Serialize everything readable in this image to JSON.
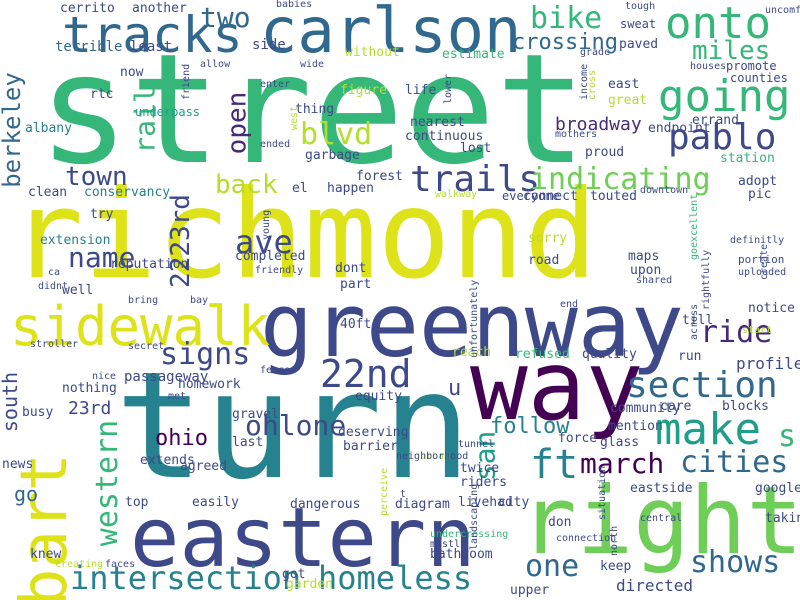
{
  "palette": [
    "#440154",
    "#482878",
    "#3e4989",
    "#31688e",
    "#26828e",
    "#1f9e89",
    "#35b779",
    "#6ece58",
    "#b5de2b",
    "#fde725"
  ],
  "words": [
    {
      "text": "street",
      "color": "#35b779"
    },
    {
      "text": "richmond",
      "color": "#dde318"
    },
    {
      "text": "turn",
      "color": "#26828e"
    },
    {
      "text": "greenway",
      "color": "#3e4989"
    },
    {
      "text": "carlson",
      "color": "#31688e"
    },
    {
      "text": "eastern",
      "color": "#3e4989"
    },
    {
      "text": "right",
      "color": "#6ece58"
    },
    {
      "text": "way",
      "color": "#440154"
    },
    {
      "text": "bart",
      "color": "#dde318"
    },
    {
      "text": "tracks",
      "color": "#31688e"
    },
    {
      "text": "sidewalk",
      "color": "#dde318"
    },
    {
      "text": "onto",
      "color": "#35b779"
    },
    {
      "text": "going",
      "color": "#35b779"
    },
    {
      "text": "make",
      "color": "#1f9e89"
    },
    {
      "text": "22nd",
      "color": "#3e4989"
    },
    {
      "text": "section",
      "color": "#31688e"
    },
    {
      "text": "trails",
      "color": "#3e4989"
    },
    {
      "text": "ft",
      "color": "#26828e"
    },
    {
      "text": "homeless",
      "color": "#26828e"
    },
    {
      "text": "intersection",
      "color": "#26828e"
    },
    {
      "text": "shows",
      "color": "#31688e"
    },
    {
      "text": "pablo",
      "color": "#3e4989"
    },
    {
      "text": "march",
      "color": "#440154"
    },
    {
      "text": "cities",
      "color": "#31688e"
    },
    {
      "text": "indicating",
      "color": "#6ece58"
    },
    {
      "text": "ride",
      "color": "#482878"
    },
    {
      "text": "signs",
      "color": "#3e4989"
    },
    {
      "text": "miles",
      "color": "#35b779"
    },
    {
      "text": "bike",
      "color": "#35b779"
    },
    {
      "text": "two",
      "color": "#31688e"
    },
    {
      "text": "town",
      "color": "#3e4989"
    },
    {
      "text": "name",
      "color": "#3e4989"
    },
    {
      "text": "back",
      "color": "#b5de2b"
    },
    {
      "text": "ave",
      "color": "#3e4989"
    },
    {
      "text": "ohlone",
      "color": "#3e4989"
    },
    {
      "text": "western",
      "color": "#35b779"
    },
    {
      "text": "one",
      "color": "#31688e"
    },
    {
      "text": "blvd",
      "color": "#b5de2b"
    },
    {
      "text": "open",
      "color": "#482878"
    },
    {
      "text": "rail",
      "color": "#35b779"
    },
    {
      "text": "2223rd",
      "color": "#3e4989"
    },
    {
      "text": "berkeley",
      "color": "#31688e"
    },
    {
      "text": "san",
      "color": "#1f9e89"
    },
    {
      "text": "crossing",
      "color": "#31688e"
    },
    {
      "text": "broadway",
      "color": "#482878"
    },
    {
      "text": "south",
      "color": "#3e4989"
    },
    {
      "text": "ohio",
      "color": "#440154"
    },
    {
      "text": "s",
      "color": "#35b779"
    },
    {
      "text": "follow",
      "color": "#26828e"
    },
    {
      "text": "go",
      "color": "#31688e"
    },
    {
      "text": "23rd",
      "color": "#3e4989"
    },
    {
      "text": "u",
      "color": "#3e4989"
    },
    {
      "text": "cerrito",
      "color": "#3e4989"
    },
    {
      "text": "another",
      "color": "#3e4989"
    },
    {
      "text": "terrible",
      "color": "#31688e"
    },
    {
      "text": "least",
      "color": "#3e4989"
    },
    {
      "text": "side",
      "color": "#3e4989"
    },
    {
      "text": "without",
      "color": "#b5de2b"
    },
    {
      "text": "estimate",
      "color": "#35b779"
    },
    {
      "text": "paved",
      "color": "#3e4989"
    },
    {
      "text": "sweat",
      "color": "#3e4989"
    },
    {
      "text": "promote",
      "color": "#3e4989"
    },
    {
      "text": "counties",
      "color": "#3e4989"
    },
    {
      "text": "now",
      "color": "#3e4989"
    },
    {
      "text": "rtc",
      "color": "#3e4989"
    },
    {
      "text": "underpass",
      "color": "#1f9e89"
    },
    {
      "text": "albany",
      "color": "#26828e"
    },
    {
      "text": "figure",
      "color": "#b5de2b"
    },
    {
      "text": "life",
      "color": "#3e4989"
    },
    {
      "text": "thing",
      "color": "#3e4989"
    },
    {
      "text": "nearest",
      "color": "#3e4989"
    },
    {
      "text": "continuous",
      "color": "#3e4989"
    },
    {
      "text": "east",
      "color": "#3e4989"
    },
    {
      "text": "great",
      "color": "#b5de2b"
    },
    {
      "text": "errand",
      "color": "#3e4989"
    },
    {
      "text": "endpoint",
      "color": "#3e4989"
    },
    {
      "text": "cross",
      "color": "#b5de2b"
    },
    {
      "text": "proud",
      "color": "#3e4989"
    },
    {
      "text": "station",
      "color": "#35b779"
    },
    {
      "text": "garbage",
      "color": "#3e4989"
    },
    {
      "text": "lost",
      "color": "#3e4989"
    },
    {
      "text": "clean",
      "color": "#3e4989"
    },
    {
      "text": "conservancy",
      "color": "#26828e"
    },
    {
      "text": "forest",
      "color": "#3e4989"
    },
    {
      "text": "happen",
      "color": "#3e4989"
    },
    {
      "text": "el",
      "color": "#3e4989"
    },
    {
      "text": "connect",
      "color": "#3e4989"
    },
    {
      "text": "touted",
      "color": "#3e4989"
    },
    {
      "text": "adopt",
      "color": "#3e4989"
    },
    {
      "text": "pic",
      "color": "#3e4989"
    },
    {
      "text": "try",
      "color": "#3e4989"
    },
    {
      "text": "extension",
      "color": "#26828e"
    },
    {
      "text": "dont",
      "color": "#3e4989"
    },
    {
      "text": "sorry",
      "color": "#b5de2b"
    },
    {
      "text": "maps",
      "color": "#3e4989"
    },
    {
      "text": "upon",
      "color": "#3e4989"
    },
    {
      "text": "road",
      "color": "#3e4989"
    },
    {
      "text": "completed",
      "color": "#3e4989"
    },
    {
      "text": "part",
      "color": "#3e4989"
    },
    {
      "text": "well",
      "color": "#3e4989"
    },
    {
      "text": "goexcellent",
      "color": "#35b779"
    },
    {
      "text": "uploaded",
      "color": "#3e4989"
    },
    {
      "text": "unfortunately",
      "color": "#3e4989"
    },
    {
      "text": "portion",
      "color": "#3e4989"
    },
    {
      "text": "40ft",
      "color": "#3e4989"
    },
    {
      "text": "end",
      "color": "#3e4989"
    },
    {
      "text": "till",
      "color": "#3e4989"
    },
    {
      "text": "notice",
      "color": "#3e4989"
    },
    {
      "text": "run",
      "color": "#3e4989"
    },
    {
      "text": "profile",
      "color": "#3e4989"
    },
    {
      "text": "reach",
      "color": "#b5de2b"
    },
    {
      "text": "refused",
      "color": "#35b779"
    },
    {
      "text": "quality",
      "color": "#3e4989"
    },
    {
      "text": "nothing",
      "color": "#3e4989"
    },
    {
      "text": "homework",
      "color": "#3e4989"
    },
    {
      "text": "equity",
      "color": "#3e4989"
    },
    {
      "text": "rightfully",
      "color": "#3e4989"
    },
    {
      "text": "gravel",
      "color": "#3e4989"
    },
    {
      "text": "last",
      "color": "#3e4989"
    },
    {
      "text": "busy",
      "color": "#3e4989"
    },
    {
      "text": "community",
      "color": "#3e4989"
    },
    {
      "text": "care",
      "color": "#3e4989"
    },
    {
      "text": "blocks",
      "color": "#3e4989"
    },
    {
      "text": "deserving",
      "color": "#3e4989"
    },
    {
      "text": "barrier",
      "color": "#3e4989"
    },
    {
      "text": "force",
      "color": "#3e4989"
    },
    {
      "text": "glass",
      "color": "#3e4989"
    },
    {
      "text": "mention",
      "color": "#3e4989"
    },
    {
      "text": "twice",
      "color": "#3e4989"
    },
    {
      "text": "riders",
      "color": "#3e4989"
    },
    {
      "text": "extends",
      "color": "#3e4989"
    },
    {
      "text": "agreed",
      "color": "#3e4989"
    },
    {
      "text": "news",
      "color": "#3e4989"
    },
    {
      "text": "start",
      "color": "#b5de2b"
    },
    {
      "text": "across",
      "color": "#3e4989"
    },
    {
      "text": "eastside",
      "color": "#3e4989"
    },
    {
      "text": "google",
      "color": "#3e4989"
    },
    {
      "text": "top",
      "color": "#3e4989"
    },
    {
      "text": "easily",
      "color": "#3e4989"
    },
    {
      "text": "dangerous",
      "color": "#3e4989"
    },
    {
      "text": "create",
      "color": "#3e4989"
    },
    {
      "text": "diagram",
      "color": "#3e4989"
    },
    {
      "text": "livehad",
      "color": "#3e4989"
    },
    {
      "text": "city",
      "color": "#3e4989"
    },
    {
      "text": "don",
      "color": "#3e4989"
    },
    {
      "text": "ended",
      "color": "#3e4989"
    },
    {
      "text": "taking",
      "color": "#3e4989"
    },
    {
      "text": "knew",
      "color": "#3e4989"
    },
    {
      "text": "bathroom",
      "color": "#3e4989"
    },
    {
      "text": "keep",
      "color": "#3e4989"
    },
    {
      "text": "got",
      "color": "#3e4989"
    },
    {
      "text": "garden",
      "color": "#b5de2b"
    },
    {
      "text": "upper",
      "color": "#3e4989"
    },
    {
      "text": "directed",
      "color": "#3e4989"
    },
    {
      "text": "undercrossing",
      "color": "#35b779"
    },
    {
      "text": "mostly",
      "color": "#3e4989"
    },
    {
      "text": "young",
      "color": "#3e4989"
    },
    {
      "text": "creating",
      "color": "#b5de2b"
    },
    {
      "text": "faces",
      "color": "#3e4989"
    },
    {
      "text": "babies",
      "color": "#3e4989"
    },
    {
      "text": "uncomfortable",
      "color": "#3e4989"
    },
    {
      "text": "tough",
      "color": "#3e4989"
    },
    {
      "text": "grade",
      "color": "#3e4989"
    },
    {
      "text": "houses",
      "color": "#3e4989"
    },
    {
      "text": "income",
      "color": "#3e4989"
    },
    {
      "text": "mothers",
      "color": "#3e4989"
    },
    {
      "text": "situation",
      "color": "#3e4989"
    },
    {
      "text": "tunnel",
      "color": "#3e4989"
    },
    {
      "text": "downtown",
      "color": "#3e4989"
    },
    {
      "text": "walkway",
      "color": "#b5de2b"
    },
    {
      "text": "everyone",
      "color": "#3e4989"
    },
    {
      "text": "reputation",
      "color": "#3e4989"
    },
    {
      "text": "ca",
      "color": "#3e4989"
    },
    {
      "text": "urban",
      "color": "#b5de2b"
    },
    {
      "text": "friendly",
      "color": "#3e4989"
    },
    {
      "text": "neighborhood",
      "color": "#3e4989"
    },
    {
      "text": "definitly",
      "color": "#3e4989"
    },
    {
      "text": "shared",
      "color": "#3e4989"
    },
    {
      "text": "didnt",
      "color": "#3e4989"
    },
    {
      "text": "bring",
      "color": "#3e4989"
    },
    {
      "text": "bay",
      "color": "#3e4989"
    },
    {
      "text": "stroller",
      "color": "#3e4989"
    },
    {
      "text": "secret",
      "color": "#3e4989"
    },
    {
      "text": "fences",
      "color": "#3e4989"
    },
    {
      "text": "nice",
      "color": "#3e4989"
    },
    {
      "text": "passageway",
      "color": "#3e4989"
    },
    {
      "text": "met",
      "color": "#3e4989"
    },
    {
      "text": "t",
      "color": "#3e4989"
    },
    {
      "text": "perceive",
      "color": "#b5de2b"
    },
    {
      "text": "central",
      "color": "#3e4989"
    },
    {
      "text": "north",
      "color": "#3e4989"
    },
    {
      "text": "connection",
      "color": "#3e4989"
    },
    {
      "text": "landscaping",
      "color": "#3e4989"
    },
    {
      "text": "enter",
      "color": "#3e4989"
    },
    {
      "text": "west",
      "color": "#b5de2b"
    },
    {
      "text": "allow",
      "color": "#3e4989"
    },
    {
      "text": "friend",
      "color": "#3e4989"
    },
    {
      "text": "wide",
      "color": "#3e4989"
    },
    {
      "text": "lower",
      "color": "#3e4989"
    }
  ]
}
